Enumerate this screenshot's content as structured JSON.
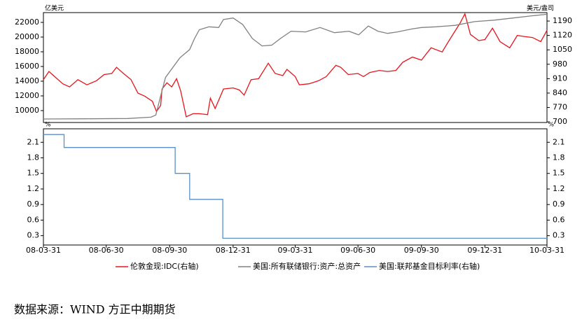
{
  "chart_data": [
    {
      "type": "line",
      "ylabel": "亿美元",
      "y2label": "美元/盎司",
      "ylim": [
        8380,
        23330
      ],
      "yticks": [
        10000,
        12000,
        14000,
        16000,
        18000,
        20000,
        22000
      ],
      "y2lim": [
        697,
        1231
      ],
      "y2ticks": [
        700,
        770,
        840,
        910,
        980,
        1050,
        1120,
        1190
      ],
      "xlim": [
        "08-03-31",
        "10-03-31"
      ],
      "series": [
        {
          "name": "伦敦金现:IDC(右轴)",
          "color": "#e8141c",
          "axis": "y2",
          "x": [
            "08-03-31",
            "08-04-08",
            "08-04-18",
            "08-04-28",
            "08-05-08",
            "08-05-20",
            "08-06-02",
            "08-06-16",
            "08-06-27",
            "08-07-08",
            "08-07-15",
            "08-07-25",
            "08-08-05",
            "08-08-15",
            "08-08-25",
            "08-09-05",
            "08-09-11",
            "08-09-17",
            "08-09-19",
            "08-09-26",
            "08-10-03",
            "08-10-10",
            "08-10-16",
            "08-10-24",
            "08-11-03",
            "08-11-12",
            "08-11-24",
            "08-11-28",
            "08-12-05",
            "08-12-17",
            "08-12-31",
            "09-01-09",
            "09-01-16",
            "09-01-26",
            "09-02-06",
            "09-02-20",
            "09-03-02",
            "09-03-13",
            "09-03-19",
            "09-03-31",
            "09-04-06",
            "09-04-20",
            "09-05-04",
            "09-05-15",
            "09-05-29",
            "09-06-05",
            "09-06-16",
            "09-06-30",
            "09-07-08",
            "09-07-17",
            "09-07-31",
            "09-08-12",
            "09-08-24",
            "09-09-03",
            "09-09-17",
            "09-09-30",
            "09-10-14",
            "09-10-30",
            "09-11-10",
            "09-11-25",
            "09-12-02",
            "09-12-10",
            "09-12-22",
            "09-12-31",
            "10-01-11",
            "10-01-22",
            "10-02-05",
            "10-02-16",
            "10-02-26",
            "10-03-10",
            "10-03-22",
            "10-03-31"
          ],
          "values": [
            905,
            945,
            915,
            885,
            870,
            905,
            880,
            900,
            930,
            935,
            965,
            935,
            905,
            840,
            825,
            800,
            750,
            780,
            860,
            890,
            870,
            910,
            850,
            725,
            740,
            740,
            735,
            815,
            765,
            860,
            865,
            855,
            830,
            905,
            910,
            985,
            935,
            925,
            955,
            920,
            880,
            885,
            900,
            920,
            975,
            965,
            930,
            935,
            920,
            940,
            950,
            945,
            950,
            990,
            1015,
            1000,
            1060,
            1040,
            1100,
            1180,
            1225,
            1125,
            1095,
            1100,
            1155,
            1090,
            1060,
            1120,
            1115,
            1110,
            1090,
            1145
          ]
        },
        {
          "name": "美国:所有联储银行:资产:总资产",
          "color": "#808080",
          "x": [
            "08-03-31",
            "08-05-31",
            "08-07-31",
            "08-09-03",
            "08-09-10",
            "08-09-17",
            "08-09-24",
            "08-10-01",
            "08-10-15",
            "08-10-29",
            "08-11-05",
            "08-11-12",
            "08-11-26",
            "08-12-10",
            "08-12-17",
            "08-12-31",
            "09-01-14",
            "09-01-28",
            "09-02-11",
            "09-02-25",
            "09-03-11",
            "09-03-25",
            "09-04-15",
            "09-05-06",
            "09-05-27",
            "09-06-17",
            "09-07-01",
            "09-07-15",
            "09-07-29",
            "09-08-12",
            "09-08-26",
            "09-09-16",
            "09-09-30",
            "09-10-21",
            "09-11-18",
            "09-12-16",
            "10-01-13",
            "10-02-10",
            "10-03-10",
            "10-03-31"
          ],
          "values": [
            8860,
            8880,
            8920,
            9100,
            9400,
            12000,
            14500,
            15400,
            17200,
            18300,
            19800,
            21000,
            21400,
            21300,
            22400,
            22600,
            21700,
            19800,
            18800,
            18900,
            19900,
            20800,
            20700,
            21300,
            20600,
            20800,
            20300,
            21500,
            20800,
            20500,
            20700,
            21100,
            21300,
            21400,
            21600,
            22100,
            22300,
            22600,
            22900,
            23100
          ]
        }
      ]
    },
    {
      "type": "line",
      "ylabel": "%",
      "y2label": "%",
      "ylim": [
        0.12,
        2.36
      ],
      "yticks": [
        0.3,
        0.6,
        0.9,
        1.2,
        1.5,
        1.8,
        2.1
      ],
      "y2lim": [
        0.12,
        2.36
      ],
      "y2ticks": [
        0.3,
        0.6,
        0.9,
        1.2,
        1.5,
        1.8,
        2.1
      ],
      "xlim": [
        "08-03-31",
        "10-03-31"
      ],
      "xticks": [
        "08-03-31",
        "08-06-30",
        "08-09-30",
        "08-12-31",
        "09-03-31",
        "09-06-30",
        "09-09-30",
        "09-12-31",
        "10-03-31"
      ],
      "series": [
        {
          "name": "美国:联邦基金目标利率(右轴)",
          "color": "#5b8fc7",
          "x": [
            "08-03-31",
            "08-04-30",
            "08-04-30",
            "08-10-08",
            "08-10-08",
            "08-10-29",
            "08-10-29",
            "08-12-16",
            "08-12-16",
            "10-03-31"
          ],
          "values": [
            2.25,
            2.25,
            2,
            2,
            1.5,
            1.5,
            1,
            1,
            0.25,
            0.25
          ]
        }
      ]
    }
  ],
  "source": "数据来源：WIND 方正中期期货"
}
